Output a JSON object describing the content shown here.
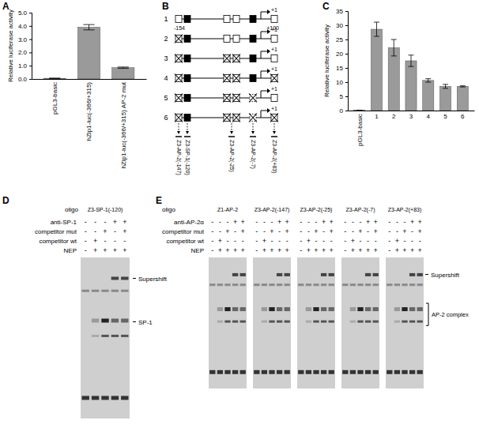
{
  "panel_labels": [
    "A",
    "B",
    "C",
    "D",
    "E"
  ],
  "chart_data": [
    {
      "type": "bar",
      "y_label": "Relative luciferase activity",
      "categories": [
        "pGL3-basic",
        "hZip1-luc(-366/+315)",
        "hZip1-luc(-366/+315) AP-2 mut"
      ],
      "values": [
        0.05,
        3.9,
        0.85
      ],
      "errors": [
        0,
        0.2,
        0.05
      ],
      "color": "#9a9a9a",
      "ylim": [
        0,
        5
      ],
      "yticks": [
        {
          "value": 0,
          "label": "0.0"
        },
        {
          "value": 1,
          "label": "1.0"
        },
        {
          "value": 2,
          "label": "2.0"
        },
        {
          "value": 3,
          "label": "3.0"
        },
        {
          "value": 4,
          "label": "4.0"
        },
        {
          "value": 5,
          "label": "5.0"
        }
      ]
    },
    {
      "type": "bar",
      "y_label": "Relative luciferase activity",
      "categories": [
        "pGL3-basic",
        "1",
        "2",
        "3",
        "4",
        "5",
        "6"
      ],
      "values": [
        0.1,
        28.6,
        22.1,
        17.5,
        10.6,
        8.5,
        8.5
      ],
      "errors": [
        0,
        2.5,
        2.9,
        2,
        0.6,
        0.7,
        0.2
      ],
      "color": "#9a9a9a",
      "ylim": [
        0,
        35
      ],
      "yticks": [
        0,
        5,
        10,
        15,
        20,
        25,
        30,
        35
      ]
    }
  ],
  "diagram": {
    "rows": [
      "1",
      "2",
      "3",
      "4",
      "5",
      "6"
    ],
    "start_label": "-154",
    "tss_label": "+1",
    "end_label": "+100",
    "oligos": [
      "Z3-AP-2(-147)",
      "Z3-SP-1(-120)",
      "Z3-AP-2(-25)",
      "Z3-AP-2(-7)",
      "Z3-AP-2(+83)"
    ]
  },
  "gel_panels": [
    {
      "oligo_header": "oligo",
      "row_labels": [
        "anti-SP-1",
        "competitor mut",
        "competitor wt",
        "NEP"
      ],
      "gels": [
        {
          "oligo": "Z3-SP-1(-120)",
          "signs": [
            [
              "-",
              "-",
              "-",
              "+",
              "+"
            ],
            [
              "-",
              "-",
              "+",
              "-",
              "+"
            ],
            [
              "-",
              "+",
              "-",
              "-",
              "-"
            ],
            [
              "-",
              "+",
              "+",
              "+",
              "+"
            ]
          ]
        }
      ],
      "annotations": [
        "Supershift",
        "SP-1"
      ]
    },
    {
      "oligo_header": "oligo",
      "row_labels": [
        "anti-AP-2α",
        "competitor mut",
        "competitor wt",
        "NEP"
      ],
      "gels": [
        {
          "oligo": "Z1-AP-2",
          "signs": [
            [
              "-",
              "-",
              "-",
              "+",
              "+"
            ],
            [
              "-",
              "-",
              "+",
              "-",
              "+"
            ],
            [
              "-",
              "+",
              "-",
              "-",
              "-"
            ],
            [
              "-",
              "+",
              "+",
              "+",
              "+"
            ]
          ]
        },
        {
          "oligo": "Z3-AP-2(-147)",
          "signs": [
            [
              "-",
              "-",
              "-",
              "+",
              "+"
            ],
            [
              "-",
              "-",
              "+",
              "-",
              "+"
            ],
            [
              "-",
              "+",
              "-",
              "-",
              "-"
            ],
            [
              "-",
              "+",
              "+",
              "+",
              "+"
            ]
          ]
        },
        {
          "oligo": "Z3-AP-2(-25)",
          "signs": [
            [
              "-",
              "-",
              "-",
              "+",
              "+"
            ],
            [
              "-",
              "-",
              "+",
              "-",
              "+"
            ],
            [
              "-",
              "+",
              "-",
              "-",
              "-"
            ],
            [
              "-",
              "+",
              "+",
              "+",
              "+"
            ]
          ]
        },
        {
          "oligo": "Z3-AP-2(-7)",
          "signs": [
            [
              "-",
              "-",
              "-",
              "+",
              "+"
            ],
            [
              "-",
              "-",
              "+",
              "-",
              "+"
            ],
            [
              "-",
              "+",
              "-",
              "-",
              "-"
            ],
            [
              "-",
              "+",
              "+",
              "+",
              "+"
            ]
          ]
        },
        {
          "oligo": "Z3-AP-2(+83)",
          "signs": [
            [
              "-",
              "-",
              "-",
              "+",
              "+"
            ],
            [
              "-",
              "-",
              "+",
              "-",
              "+"
            ],
            [
              "-",
              "+",
              "-",
              "-",
              "-"
            ],
            [
              "-",
              "+",
              "+",
              "+",
              "+"
            ]
          ]
        }
      ],
      "annotations": [
        "Supershift",
        "AP-2 complex"
      ]
    }
  ]
}
